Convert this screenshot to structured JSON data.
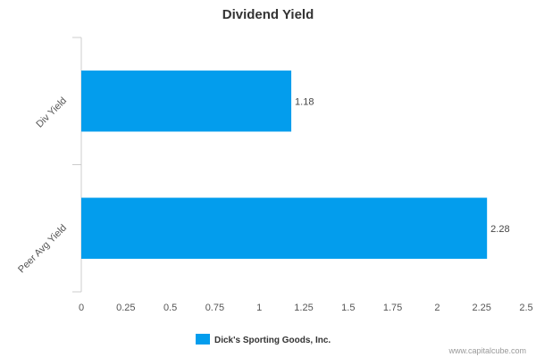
{
  "chart_data": {
    "type": "bar",
    "orientation": "horizontal",
    "title": "Dividend Yield",
    "categories": [
      "Div Yield",
      "Peer Avg Yield"
    ],
    "series": [
      {
        "name": "Dick's Sporting Goods, Inc.",
        "values": [
          1.18,
          2.28
        ],
        "color": "#039ded"
      }
    ],
    "xlim": [
      0,
      2.5
    ],
    "xticks": [
      "0",
      "0.25",
      "0.5",
      "0.75",
      "1",
      "1.25",
      "1.5",
      "1.75",
      "2",
      "2.25",
      "2.5"
    ],
    "data_labels": [
      "1.18",
      "2.28"
    ],
    "grid": false,
    "legend_position": "bottom"
  },
  "credit": "www.capitalcube.com"
}
